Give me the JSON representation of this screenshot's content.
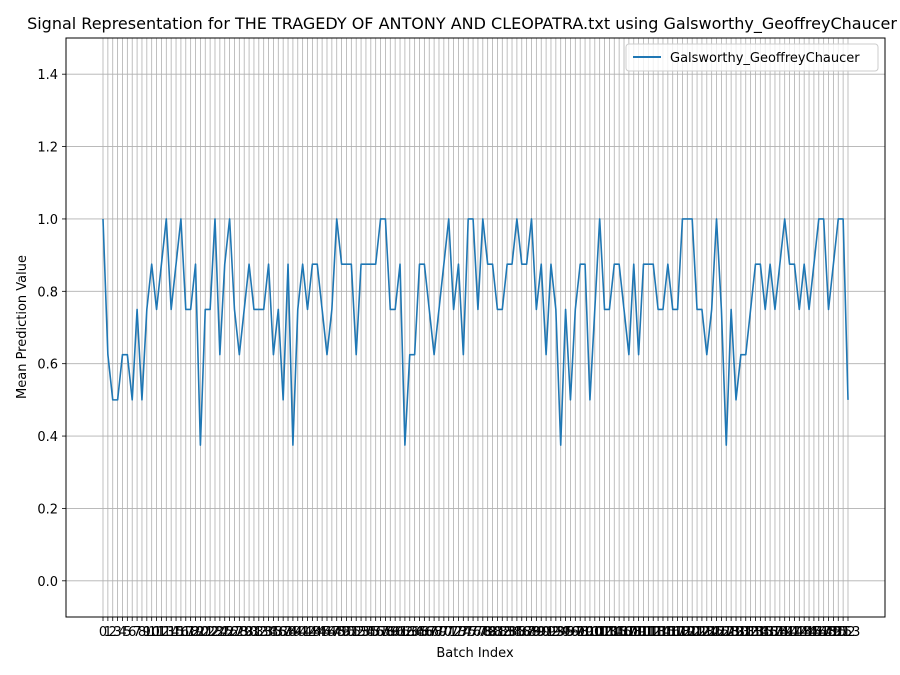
{
  "chart_data": {
    "type": "line",
    "title": "Signal Representation for THE TRAGEDY OF ANTONY AND CLEOPATRA.txt using Galsworthy_GeoffreyChaucer",
    "xlabel": "Batch Index",
    "ylabel": "Mean Prediction Value",
    "ylim": [
      -0.1,
      1.5
    ],
    "yticks": [
      "0.0",
      "0.2",
      "0.4",
      "0.6",
      "0.8",
      "1.0",
      "1.2",
      "1.4"
    ],
    "grid": true,
    "legend_position": "top-right",
    "series": [
      {
        "name": "Galsworthy_GeoffreyChaucer",
        "color": "#1f77b4",
        "x": [
          0,
          1,
          2,
          3,
          4,
          5,
          6,
          7,
          8,
          9,
          10,
          11,
          12,
          13,
          14,
          15,
          16,
          17,
          18,
          19,
          20,
          21,
          22,
          23,
          24,
          25,
          26,
          27,
          28,
          29,
          30,
          31,
          32,
          33,
          34,
          35,
          36,
          37,
          38,
          39,
          40,
          41,
          42,
          43,
          44,
          45,
          46,
          47,
          48,
          49,
          50,
          51,
          52,
          53,
          54,
          55,
          56,
          57,
          58,
          59,
          60,
          61,
          62,
          63,
          64,
          65,
          66,
          67,
          68,
          69,
          70,
          71,
          72,
          73,
          74,
          75,
          76,
          77,
          78,
          79,
          80,
          81,
          82,
          83,
          84,
          85,
          86,
          87,
          88,
          89,
          90,
          91,
          92,
          93,
          94,
          95,
          96,
          97,
          98,
          99,
          100,
          101,
          102,
          103,
          104,
          105,
          106,
          107,
          108,
          109,
          110,
          111,
          112,
          113,
          114,
          115,
          116,
          117,
          118,
          119,
          120,
          121,
          122,
          123,
          124,
          125,
          126,
          127,
          128,
          129,
          130,
          131,
          132,
          133,
          134,
          135,
          136,
          137,
          138,
          139,
          140,
          141,
          142,
          143,
          144,
          145,
          146,
          147,
          148,
          149,
          150,
          151,
          152,
          153
        ],
        "values": [
          1.0,
          0.625,
          0.5,
          0.5,
          0.625,
          0.625,
          0.5,
          0.75,
          0.5,
          0.75,
          0.875,
          0.75,
          0.875,
          1.0,
          0.75,
          0.875,
          1.0,
          0.75,
          0.75,
          0.875,
          0.375,
          0.75,
          0.75,
          1.0,
          0.625,
          0.875,
          1.0,
          0.75,
          0.625,
          0.75,
          0.875,
          0.75,
          0.75,
          0.75,
          0.875,
          0.625,
          0.75,
          0.5,
          0.875,
          0.375,
          0.75,
          0.875,
          0.75,
          0.875,
          0.875,
          0.75,
          0.625,
          0.75,
          1.0,
          0.875,
          0.875,
          0.875,
          0.625,
          0.875,
          0.875,
          0.875,
          0.875,
          1.0,
          1.0,
          0.75,
          0.75,
          0.875,
          0.375,
          0.625,
          0.625,
          0.875,
          0.875,
          0.75,
          0.625,
          0.75,
          0.875,
          1.0,
          0.75,
          0.875,
          0.625,
          1.0,
          1.0,
          0.75,
          1.0,
          0.875,
          0.875,
          0.75,
          0.75,
          0.875,
          0.875,
          1.0,
          0.875,
          0.875,
          1.0,
          0.75,
          0.875,
          0.625,
          0.875,
          0.75,
          0.375,
          0.75,
          0.5,
          0.75,
          0.875,
          0.875,
          0.5,
          0.75,
          1.0,
          0.75,
          0.75,
          0.875,
          0.875,
          0.75,
          0.625,
          0.875,
          0.625,
          0.875,
          0.875,
          0.875,
          0.75,
          0.75,
          0.875,
          0.75,
          0.75,
          1.0,
          1.0,
          1.0,
          0.75,
          0.75,
          0.625,
          0.75,
          1.0,
          0.75,
          0.375,
          0.75,
          0.5,
          0.625,
          0.625,
          0.75,
          0.875,
          0.875,
          0.75,
          0.875,
          0.75,
          0.875,
          1.0,
          0.875,
          0.875,
          0.75,
          0.875,
          0.75,
          0.875,
          1.0,
          1.0,
          0.75,
          0.875,
          1.0,
          1.0,
          0.5
        ]
      }
    ]
  }
}
